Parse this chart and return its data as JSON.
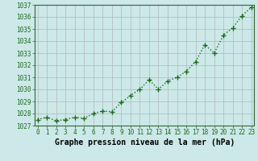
{
  "x": [
    0,
    1,
    2,
    3,
    4,
    5,
    6,
    7,
    8,
    9,
    10,
    11,
    12,
    13,
    14,
    15,
    16,
    17,
    18,
    19,
    20,
    21,
    22,
    23
  ],
  "y": [
    1027.5,
    1027.7,
    1027.4,
    1027.5,
    1027.7,
    1027.6,
    1028.0,
    1028.2,
    1028.15,
    1028.9,
    1029.5,
    1030.0,
    1030.8,
    1030.0,
    1030.7,
    1031.0,
    1031.5,
    1032.3,
    1033.7,
    1033.0,
    1034.5,
    1035.1,
    1036.1,
    1036.8
  ],
  "ylim": [
    1027,
    1037
  ],
  "xlim": [
    -0.3,
    23.3
  ],
  "yticks": [
    1027,
    1028,
    1029,
    1030,
    1031,
    1032,
    1033,
    1034,
    1035,
    1036,
    1037
  ],
  "xticks": [
    0,
    1,
    2,
    3,
    4,
    5,
    6,
    7,
    8,
    9,
    10,
    11,
    12,
    13,
    14,
    15,
    16,
    17,
    18,
    19,
    20,
    21,
    22,
    23
  ],
  "line_color": "#1a6b1a",
  "marker": "+",
  "marker_size": 4,
  "bg_color": "#cce8e8",
  "grid_color": "#b0b8b8",
  "xlabel": "Graphe pression niveau de la mer (hPa)",
  "xlabel_fontsize": 7.0,
  "tick_fontsize": 5.5,
  "line_width": 1.0,
  "spine_color": "#336633"
}
